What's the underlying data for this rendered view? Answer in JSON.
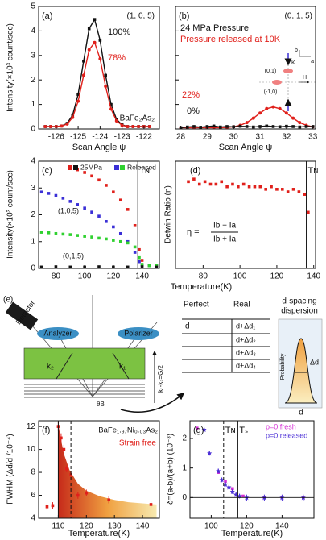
{
  "chart_data": [
    {
      "type": "line",
      "panel": "(a)",
      "xlim": [
        -126.8,
        -121.3
      ],
      "ylim": [
        0,
        5
      ],
      "xticks": [
        -126,
        -125,
        -124,
        -123,
        -122
      ],
      "yticks": [
        0,
        1,
        2,
        3,
        4,
        5
      ],
      "xlabel": "Scan Angle ψ",
      "ylabel": "Intensity(×10³ count/sec)",
      "series": [
        {
          "color": "#111111",
          "mode": "line+markers",
          "marker": "square",
          "x": [
            -126.5,
            -126.25,
            -126,
            -125.75,
            -125.5,
            -125.25,
            -125,
            -124.75,
            -124.5,
            -124.25,
            -124,
            -123.75,
            -123.5,
            -123.25,
            -123,
            -122.75,
            -122.5,
            -122.25,
            -122,
            -121.75
          ],
          "values": [
            0.1,
            0.1,
            0.1,
            0.12,
            0.23,
            0.57,
            1.41,
            2.77,
            4.09,
            4.47,
            3.62,
            2.19,
            1.0,
            0.39,
            0.17,
            0.1,
            0.1,
            0.1,
            0.1,
            0.1
          ]
        },
        {
          "color": "#e0201b",
          "mode": "line+markers",
          "marker": "circle",
          "x": [
            -126.5,
            -126.25,
            -126,
            -125.75,
            -125.5,
            -125.25,
            -125,
            -124.75,
            -124.5,
            -124.25,
            -124,
            -123.75,
            -123.5,
            -123.25,
            -123,
            -122.75,
            -122.5,
            -122.25,
            -122,
            -121.75
          ],
          "values": [
            0.1,
            0.1,
            0.1,
            0.12,
            0.2,
            0.47,
            1.13,
            2.19,
            3.23,
            3.53,
            2.86,
            1.74,
            0.81,
            0.33,
            0.15,
            0.1,
            0.1,
            0.1,
            0.1,
            0.1
          ]
        }
      ],
      "annotations": [
        {
          "text": "(1, 0, 5)",
          "color": "#111111"
        },
        {
          "text": "100%",
          "color": "#111111"
        },
        {
          "text": "78%",
          "color": "#e0201b"
        },
        {
          "text": "BaFe₂As₂",
          "color": "#111111"
        }
      ]
    },
    {
      "type": "line",
      "panel": "(b)",
      "xlim": [
        27.8,
        33.1
      ],
      "ylim": [
        0,
        5
      ],
      "xticks": [
        28,
        29,
        30,
        31,
        32,
        33
      ],
      "yticks": [
        0,
        1,
        2,
        3,
        4,
        5
      ],
      "ytick_labels": false,
      "xlabel": "Scan Angle ψ",
      "series": [
        {
          "color": "#e0201b",
          "mode": "line+markers",
          "marker": "circle",
          "x": [
            28,
            28.25,
            28.5,
            28.75,
            29,
            29.25,
            29.5,
            29.75,
            30,
            30.25,
            30.5,
            30.75,
            31,
            31.25,
            31.5,
            31.75,
            32,
            32.25,
            32.5,
            32.75,
            33
          ],
          "values": [
            0.05,
            0.05,
            0.05,
            0.05,
            0.05,
            0.05,
            0.05,
            0.06,
            0.09,
            0.15,
            0.26,
            0.44,
            0.65,
            0.83,
            0.9,
            0.83,
            0.65,
            0.44,
            0.26,
            0.15,
            0.09
          ]
        },
        {
          "color": "#111111",
          "mode": "line+markers",
          "marker": "square",
          "x": [
            28,
            28.25,
            28.5,
            28.75,
            29,
            29.25,
            29.5,
            29.75,
            30,
            30.25,
            30.5,
            30.75,
            31,
            31.25,
            31.5,
            31.75,
            32,
            32.25,
            32.5,
            32.75,
            33
          ],
          "values": [
            0.05,
            0.08,
            0.1,
            0.07,
            0.1,
            0.12,
            0.08,
            0.1,
            0.09,
            0.11,
            0.1,
            0.08,
            0.1,
            0.12,
            0.1,
            0.09,
            0.11,
            0.1,
            0.08,
            0.1,
            0.1
          ]
        }
      ],
      "annotations": [
        {
          "text": "(0, 1, 5)",
          "color": "#111111"
        },
        {
          "text": "24 MPa Pressure",
          "color": "#111111"
        },
        {
          "text": "Pressure released at 10K",
          "color": "#e0201b"
        },
        {
          "text": "22%",
          "color": "#e0201b"
        },
        {
          "text": "0%",
          "color": "#111111"
        },
        {
          "text": "(0,1)",
          "color": "#111111"
        },
        {
          "text": "(-1,0)",
          "color": "#111111"
        },
        {
          "text": "K",
          "color": "#111111"
        },
        {
          "text": "H",
          "color": "#111111"
        },
        {
          "text": "b",
          "color": "#111111"
        },
        {
          "text": "a",
          "color": "#111111"
        }
      ]
    },
    {
      "type": "scatter",
      "panel": "(c)",
      "xlim": [
        68,
        152
      ],
      "ylim": [
        0,
        4
      ],
      "xticks": [
        80,
        100,
        120,
        140
      ],
      "yticks": [
        0,
        1,
        2,
        3,
        4
      ],
      "ylabel": "Intensity(×10³ count/sec)",
      "legend": [
        {
          "name": "25MPa",
          "colors": [
            "#e0201b",
            "#111111"
          ]
        },
        {
          "name": "Released",
          "colors": [
            "#3a2fd6",
            "#2fd12f"
          ]
        }
      ],
      "series": [
        {
          "color": "#e0201b",
          "mode": "markers",
          "marker": "square",
          "x": [
            90,
            95,
            100,
            105,
            110,
            115,
            120,
            125,
            130,
            135,
            138,
            140,
            145,
            150
          ],
          "values": [
            3.78,
            3.68,
            3.58,
            3.45,
            3.3,
            3.1,
            2.85,
            2.55,
            2.2,
            1.6,
            0.7,
            0.3,
            0.12,
            0.1
          ]
        },
        {
          "color": "#3a2fd6",
          "mode": "markers",
          "marker": "square",
          "x": [
            70,
            75,
            80,
            85,
            90,
            95,
            100,
            105,
            110,
            115,
            120,
            125,
            130,
            135,
            138,
            140,
            145,
            150
          ],
          "values": [
            2.85,
            2.8,
            2.72,
            2.62,
            2.5,
            2.38,
            2.25,
            2.1,
            1.95,
            1.75,
            1.55,
            1.3,
            1.0,
            0.6,
            0.25,
            0.12,
            0.1,
            0.1
          ]
        },
        {
          "color": "#2fd12f",
          "mode": "markers",
          "marker": "square",
          "x": [
            70,
            75,
            80,
            85,
            90,
            95,
            100,
            105,
            110,
            115,
            120,
            125,
            130,
            135,
            138,
            140,
            145,
            150
          ],
          "values": [
            1.35,
            1.33,
            1.3,
            1.28,
            1.26,
            1.23,
            1.2,
            1.17,
            1.13,
            1.1,
            1.05,
            1.0,
            0.95,
            0.8,
            0.4,
            0.15,
            0.1,
            0.1
          ]
        },
        {
          "color": "#111111",
          "mode": "markers",
          "marker": "square",
          "x": [
            70,
            80,
            90,
            100,
            110,
            120,
            130,
            140,
            150
          ],
          "values": [
            0.05,
            0.06,
            0.05,
            0.05,
            0.06,
            0.05,
            0.05,
            0.06,
            0.05
          ]
        }
      ],
      "vlines": [
        {
          "x": 137,
          "label": "Tɴ",
          "style": "solid"
        }
      ],
      "annotations": [
        {
          "text": "(1,0,5)",
          "color": "#111111"
        },
        {
          "text": "(0,1,5)",
          "color": "#111111"
        }
      ]
    },
    {
      "type": "scatter",
      "panel": "(d)",
      "xlim": [
        65,
        141
      ],
      "ylim": [
        0,
        0.42
      ],
      "xticks": [
        80,
        100,
        120,
        140
      ],
      "xlabel": "Temperature(K)",
      "ylabel": "Detwin Ratio (η)",
      "series": [
        {
          "color": "#e0201b",
          "mode": "markers",
          "marker": "square",
          "x": [
            72,
            75,
            78,
            81,
            84,
            87,
            90,
            93,
            96,
            99,
            102,
            105,
            108,
            111,
            114,
            117,
            120,
            123,
            126,
            129,
            132,
            135,
            137
          ],
          "values": [
            0.34,
            0.35,
            0.33,
            0.34,
            0.33,
            0.33,
            0.34,
            0.32,
            0.33,
            0.32,
            0.33,
            0.32,
            0.32,
            0.32,
            0.31,
            0.32,
            0.31,
            0.31,
            0.3,
            0.31,
            0.3,
            0.29,
            0.22
          ]
        }
      ],
      "vlines": [
        {
          "x": 136,
          "label": "Tɴ",
          "style": "solid"
        }
      ],
      "annotations": [
        {
          "text": "η =",
          "color": "#111111"
        },
        {
          "text": "Ib − Ia",
          "color": "#111111"
        },
        {
          "text": "Ib + Ia",
          "color": "#111111"
        }
      ]
    },
    {
      "type": "scatter",
      "panel": "(f)",
      "xlim": [
        103,
        146
      ],
      "ylim": [
        4,
        12.5
      ],
      "xticks": [
        110,
        120,
        130,
        140
      ],
      "yticks": [
        4,
        6,
        8,
        10,
        12
      ],
      "xlabel": "Temperature(K)",
      "ylabel": "FWHM (Δd/d /10⁻⁴)",
      "series": [
        {
          "mode": "area",
          "gradient": [
            "#c62a1a",
            "#f0a040",
            "#f7eab0"
          ],
          "x": [
            110,
            111,
            112,
            114,
            117,
            120,
            125,
            130,
            135,
            140,
            145
          ],
          "values": [
            12.2,
            10.8,
            9.6,
            8.2,
            7.0,
            6.4,
            5.9,
            5.6,
            5.4,
            5.3,
            5.2
          ]
        },
        {
          "color": "#e0201b",
          "mode": "markers",
          "marker": "square",
          "x": [
            106,
            108,
            110,
            111,
            112,
            113,
            114.5,
            117,
            120,
            128,
            143
          ],
          "values": [
            5.0,
            5.1,
            12.0,
            11.0,
            10.0,
            8.3,
            7.8,
            6.0,
            6.2,
            5.6,
            5.2
          ],
          "errors": [
            0.3,
            0.3,
            0.4,
            0.4,
            0.4,
            0.3,
            0.3,
            0.3,
            0.3,
            0.3,
            0.3
          ]
        }
      ],
      "vlines": [
        {
          "x": 110,
          "style": "solid"
        },
        {
          "x": 114.5,
          "style": "dashed"
        }
      ],
      "annotations": [
        {
          "text": "BaFe₁.₉₇Ni₀.₀₃As₂",
          "color": "#111111"
        },
        {
          "text": "Strain free",
          "color": "#e0201b"
        }
      ]
    },
    {
      "type": "scatter",
      "panel": "(g)",
      "xlim": [
        88,
        158
      ],
      "ylim": [
        -0.7,
        2.6
      ],
      "xticks": [
        100,
        120,
        140
      ],
      "yticks": [
        0,
        1,
        2
      ],
      "zero_line": true,
      "xlabel": "Temperature(K)",
      "ylabel": "δ=(a-b)/(a+b) (10⁻³)",
      "series": [
        {
          "name": "p=0 fresh",
          "color": "#d62fd6",
          "mode": "markers",
          "marker": "square",
          "x": [
            92,
            104,
            108,
            112,
            118,
            130,
            140,
            152
          ],
          "values": [
            2.35,
            0.85,
            0.55,
            0.3,
            0.05,
            0,
            0,
            0
          ]
        },
        {
          "name": "p=0 released",
          "color": "#4b2fd6",
          "mode": "markers",
          "marker": "star",
          "x": [
            96,
            99,
            104,
            106,
            108,
            110,
            112,
            114,
            116,
            120,
            130,
            140,
            152
          ],
          "values": [
            2.3,
            1.5,
            0.9,
            0.6,
            0.45,
            0.35,
            0.2,
            0.1,
            0.05,
            0,
            0,
            0,
            0
          ],
          "errors": [
            0.08,
            0.08,
            0.08,
            0.08,
            0.08,
            0.08,
            0.08,
            0.08,
            0.08,
            0.1,
            0.1,
            0.1,
            0.1
          ]
        }
      ],
      "vlines": [
        {
          "x": 107,
          "label": "Tɴ",
          "style": "dashed"
        },
        {
          "x": 115,
          "label": "Tₛ",
          "style": "solid"
        }
      ]
    }
  ],
  "diagram": {
    "panel": "(e)",
    "detector": "Detector",
    "analyzer": "Analyzer",
    "polarizer": "Polarizer",
    "k2": "k₂",
    "k1": "k₁",
    "theta": "θB",
    "vector": "k₁-k₂=G/2",
    "perfect": "Perfect",
    "real": "Real",
    "d_perfect": "d",
    "real_spacings": [
      "d+Δd₁",
      "d+Δd₂",
      "d+Δd₃",
      "d+Δd₄"
    ],
    "dispersion": [
      "d-spacing",
      "dispersion"
    ],
    "probability": "Probability",
    "delta": "Δd",
    "d_axis": "d"
  }
}
